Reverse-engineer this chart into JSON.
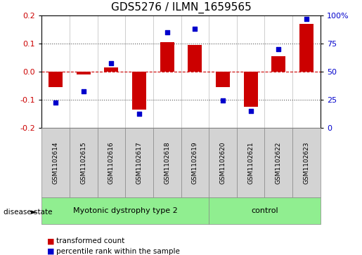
{
  "title": "GDS5276 / ILMN_1659565",
  "samples": [
    "GSM1102614",
    "GSM1102615",
    "GSM1102616",
    "GSM1102617",
    "GSM1102618",
    "GSM1102619",
    "GSM1102620",
    "GSM1102621",
    "GSM1102622",
    "GSM1102623"
  ],
  "transformed_count": [
    -0.055,
    -0.01,
    0.015,
    -0.135,
    0.105,
    0.095,
    -0.055,
    -0.125,
    0.055,
    0.17
  ],
  "percentile_rank": [
    22,
    32,
    57,
    12,
    85,
    88,
    24,
    15,
    70,
    97
  ],
  "ylim_left": [
    -0.2,
    0.2
  ],
  "ylim_right": [
    0,
    100
  ],
  "yticks_left": [
    -0.2,
    -0.1,
    0.0,
    0.1,
    0.2
  ],
  "yticks_right": [
    0,
    25,
    50,
    75,
    100
  ],
  "ytick_labels_right": [
    "0",
    "25",
    "50",
    "75",
    "100%"
  ],
  "bar_color": "#cc0000",
  "dot_color": "#0000cc",
  "zero_line_color": "#cc0000",
  "dotted_line_color": "#555555",
  "groups": [
    {
      "label": "Myotonic dystrophy type 2",
      "start": 0,
      "end": 6,
      "color": "#90ee90"
    },
    {
      "label": "control",
      "start": 6,
      "end": 10,
      "color": "#90ee90"
    }
  ],
  "disease_state_label": "disease state",
  "legend_items": [
    {
      "label": "transformed count",
      "color": "#cc0000"
    },
    {
      "label": "percentile rank within the sample",
      "color": "#0000cc"
    }
  ],
  "bg_color": "#ffffff",
  "plot_bg_color": "#ffffff",
  "left_tick_color": "#cc0000",
  "right_tick_color": "#0000cc",
  "title_fontsize": 11,
  "tick_fontsize": 8,
  "sample_fontsize": 6.5,
  "group_fontsize": 8,
  "legend_fontsize": 7.5,
  "bar_width": 0.5,
  "dot_size": 20
}
